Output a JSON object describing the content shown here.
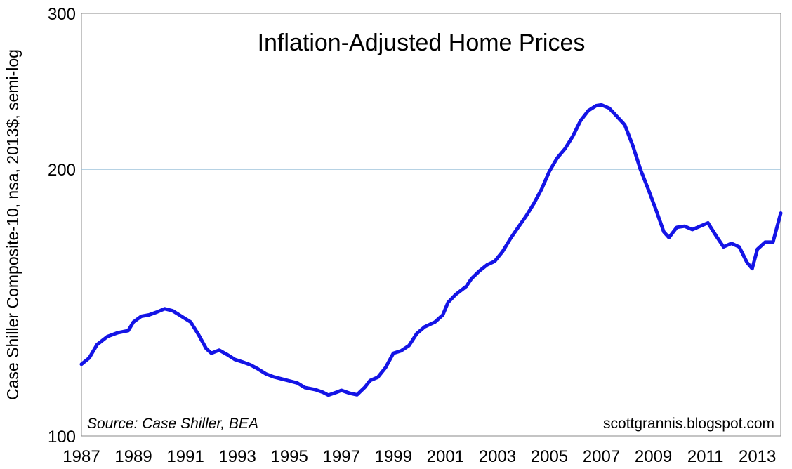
{
  "chart_data": {
    "type": "line",
    "title": "Inflation-Adjusted Home Prices",
    "xlabel": "",
    "ylabel": "Case Shiller Composite-10, nsa, 2013$, semi-log",
    "y_scale": "log",
    "ylim": [
      100,
      300
    ],
    "xlim": [
      1987.0,
      2013.9
    ],
    "y_ticks": [
      100,
      200,
      300
    ],
    "x_ticks": [
      1987,
      1989,
      1991,
      1993,
      1995,
      1997,
      1999,
      2001,
      2003,
      2005,
      2007,
      2009,
      2011,
      2013
    ],
    "gridlines_y": [
      200
    ],
    "line_color": "#1414e6",
    "grid_color": "#9dc3db",
    "annotations": {
      "source": "Source: Case Shiller, BEA",
      "website": "scottgrannis.blogspot.com"
    },
    "series": [
      {
        "name": "",
        "points": [
          [
            1987.0,
            120.5
          ],
          [
            1987.3,
            122.5
          ],
          [
            1987.6,
            126.8
          ],
          [
            1988.0,
            129.5
          ],
          [
            1988.4,
            130.8
          ],
          [
            1988.8,
            131.5
          ],
          [
            1989.0,
            134.5
          ],
          [
            1989.3,
            136.5
          ],
          [
            1989.6,
            137.0
          ],
          [
            1989.9,
            138.0
          ],
          [
            1990.2,
            139.2
          ],
          [
            1990.5,
            138.5
          ],
          [
            1990.9,
            136.2
          ],
          [
            1991.2,
            134.5
          ],
          [
            1991.5,
            130.2
          ],
          [
            1991.8,
            125.5
          ],
          [
            1992.0,
            124.0
          ],
          [
            1992.3,
            125.0
          ],
          [
            1992.6,
            123.6
          ],
          [
            1992.9,
            122.0
          ],
          [
            1993.2,
            121.2
          ],
          [
            1993.5,
            120.3
          ],
          [
            1993.8,
            119.0
          ],
          [
            1994.1,
            117.5
          ],
          [
            1994.4,
            116.6
          ],
          [
            1994.7,
            116.0
          ],
          [
            1995.0,
            115.4
          ],
          [
            1995.3,
            114.8
          ],
          [
            1995.6,
            113.4
          ],
          [
            1996.0,
            112.8
          ],
          [
            1996.3,
            112.0
          ],
          [
            1996.5,
            111.2
          ],
          [
            1996.8,
            112.0
          ],
          [
            1997.0,
            112.6
          ],
          [
            1997.3,
            111.8
          ],
          [
            1997.6,
            111.3
          ],
          [
            1997.9,
            113.5
          ],
          [
            1998.1,
            115.5
          ],
          [
            1998.4,
            116.5
          ],
          [
            1998.7,
            119.5
          ],
          [
            1999.0,
            124.0
          ],
          [
            1999.3,
            124.8
          ],
          [
            1999.6,
            126.5
          ],
          [
            1999.9,
            130.5
          ],
          [
            2000.2,
            132.8
          ],
          [
            2000.6,
            134.5
          ],
          [
            2000.9,
            137.0
          ],
          [
            2001.1,
            141.5
          ],
          [
            2001.4,
            144.5
          ],
          [
            2001.8,
            147.5
          ],
          [
            2002.0,
            150.5
          ],
          [
            2002.3,
            153.5
          ],
          [
            2002.6,
            156.0
          ],
          [
            2002.9,
            157.5
          ],
          [
            2003.2,
            161.5
          ],
          [
            2003.5,
            167.0
          ],
          [
            2003.8,
            172.0
          ],
          [
            2004.1,
            177.0
          ],
          [
            2004.4,
            183.0
          ],
          [
            2004.7,
            190.0
          ],
          [
            2005.0,
            199.0
          ],
          [
            2005.3,
            206.0
          ],
          [
            2005.6,
            211.0
          ],
          [
            2005.9,
            218.0
          ],
          [
            2006.2,
            227.0
          ],
          [
            2006.5,
            233.0
          ],
          [
            2006.8,
            236.0
          ],
          [
            2007.0,
            236.5
          ],
          [
            2007.3,
            234.5
          ],
          [
            2007.6,
            229.5
          ],
          [
            2007.9,
            224.5
          ],
          [
            2008.2,
            213.0
          ],
          [
            2008.5,
            200.0
          ],
          [
            2008.8,
            190.0
          ],
          [
            2009.1,
            180.0
          ],
          [
            2009.4,
            170.0
          ],
          [
            2009.6,
            167.5
          ],
          [
            2009.9,
            172.0
          ],
          [
            2010.2,
            172.5
          ],
          [
            2010.5,
            171.0
          ],
          [
            2010.8,
            172.5
          ],
          [
            2011.1,
            174.0
          ],
          [
            2011.4,
            168.5
          ],
          [
            2011.7,
            163.5
          ],
          [
            2012.0,
            165.0
          ],
          [
            2012.3,
            163.5
          ],
          [
            2012.6,
            157.0
          ],
          [
            2012.8,
            154.5
          ],
          [
            2013.0,
            162.5
          ],
          [
            2013.3,
            165.5
          ],
          [
            2013.6,
            165.5
          ],
          [
            2013.9,
            178.5
          ]
        ]
      }
    ]
  }
}
